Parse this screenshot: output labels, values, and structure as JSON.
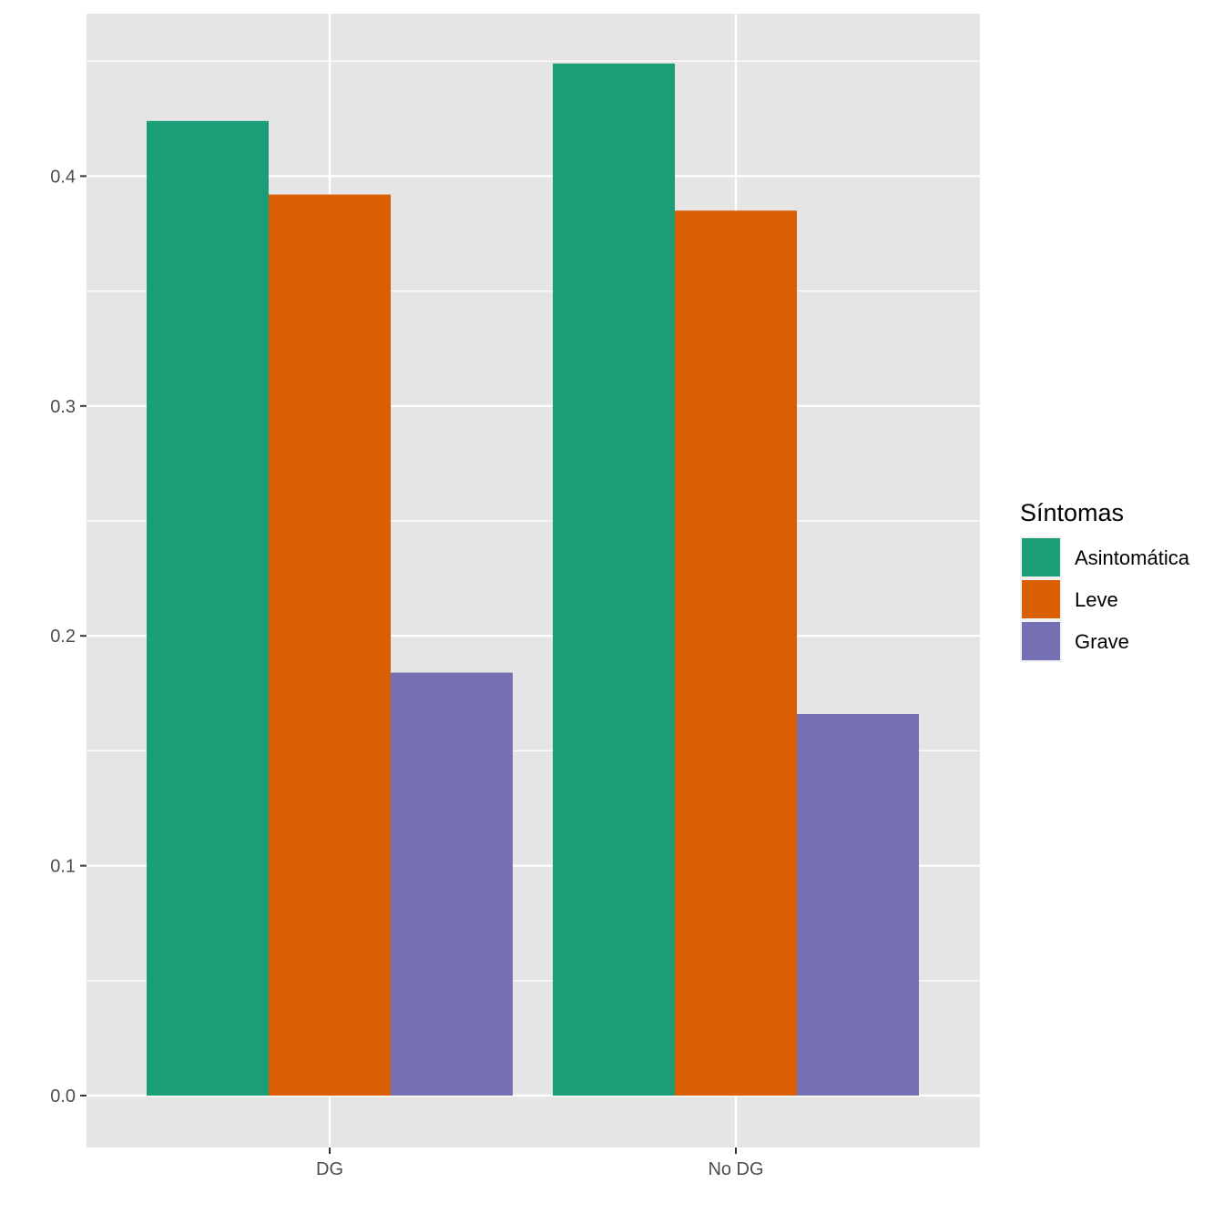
{
  "chart_data": {
    "type": "bar",
    "categories": [
      "DG",
      "No DG"
    ],
    "series": [
      {
        "name": "Asintomática",
        "values": [
          0.424,
          0.449
        ]
      },
      {
        "name": "Leve",
        "values": [
          0.392,
          0.385
        ]
      },
      {
        "name": "Grave",
        "values": [
          0.184,
          0.166
        ]
      }
    ],
    "title": "",
    "xlabel": "",
    "ylabel": "",
    "ylim": [
      -0.04,
      0.47
    ],
    "yticks": [
      0.0,
      0.1,
      0.2,
      0.3,
      0.4
    ],
    "ytick_labels": [
      "0.0",
      "0.1",
      "0.2",
      "0.3",
      "0.4"
    ],
    "grid": true,
    "legend": {
      "title": "Síntomas",
      "position": "right"
    }
  },
  "colors": {
    "panel_background": "#e5e5e5",
    "grid": "#ffffff",
    "series": [
      "#1b9e77",
      "#d95f02",
      "#7570b3"
    ]
  }
}
